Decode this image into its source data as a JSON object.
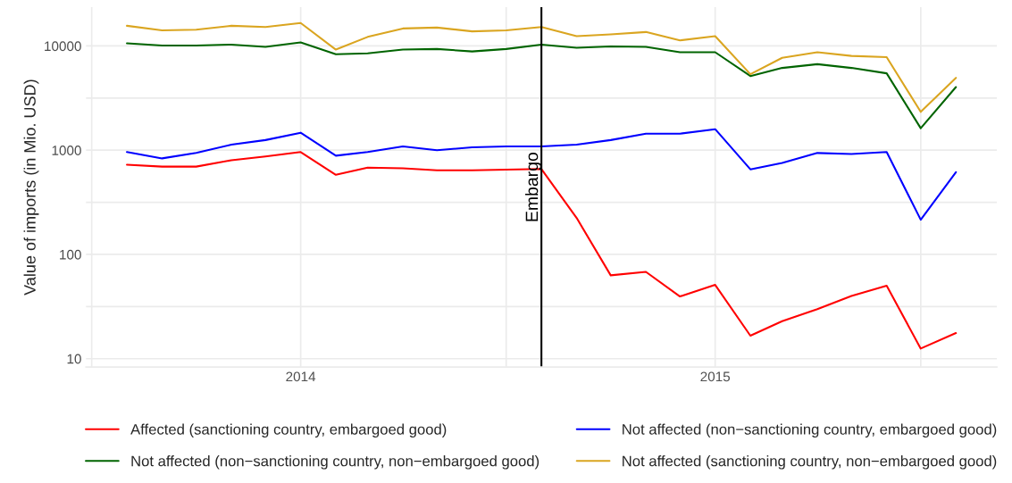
{
  "chart_data": {
    "type": "line",
    "ylabel": "Value of imports (in Mio. USD)",
    "x": [
      "2013-08",
      "2013-09",
      "2013-10",
      "2013-11",
      "2013-12",
      "2014-01",
      "2014-02",
      "2014-03",
      "2014-04",
      "2014-05",
      "2014-06",
      "2014-07",
      "2014-08",
      "2014-09",
      "2014-10",
      "2014-11",
      "2014-12",
      "2015-01",
      "2015-02",
      "2015-03",
      "2015-04",
      "2015-05",
      "2015-06",
      "2015-07",
      "2015-08"
    ],
    "series": [
      {
        "name": "Affected (sanctioning country, embargoed good)",
        "color": "#ff0000",
        "values": [
          724,
          695,
          695,
          800,
          869,
          960,
          580,
          680,
          670,
          640,
          640,
          650,
          660,
          224,
          63,
          68,
          39.5,
          51,
          16.6,
          22.9,
          29.8,
          40,
          50,
          12.5,
          17.6
        ]
      },
      {
        "name": "Not affected (non−sanctioning country, embargoed good)",
        "color": "#0000ff",
        "values": [
          960,
          834,
          940,
          1130,
          1250,
          1470,
          885,
          960,
          1085,
          1000,
          1065,
          1085,
          1085,
          1130,
          1250,
          1440,
          1440,
          1590,
          655,
          754,
          940,
          920,
          960,
          215,
          615
        ]
      },
      {
        "name": "Not affected (non−sanctioning country, non−embargoed good)",
        "color": "#006400",
        "values": [
          10600,
          10100,
          10100,
          10300,
          9800,
          10800,
          8330,
          8500,
          9220,
          9350,
          8850,
          9350,
          10300,
          9600,
          9900,
          9800,
          8700,
          8700,
          5140,
          6150,
          6680,
          6150,
          5460,
          1625,
          4030
        ]
      },
      {
        "name": "Not affected (sanctioning country, non−embargoed good)",
        "color": "#daa520",
        "values": [
          15600,
          14100,
          14300,
          15600,
          15200,
          16600,
          9220,
          12200,
          14700,
          15000,
          13800,
          14100,
          15200,
          12400,
          12900,
          13600,
          11300,
          12400,
          5350,
          7690,
          8700,
          8020,
          7800,
          2330,
          4940
        ]
      }
    ],
    "log": "y",
    "ylim": [
      8.3,
      23500
    ],
    "yticks": [
      10,
      {
        "value": 31.6,
        "label": null
      },
      100,
      {
        "value": 316,
        "label": null
      },
      1000,
      {
        "value": 3160,
        "label": null
      },
      10000
    ],
    "xlim": [
      "2013-06-26",
      "2015-09-06"
    ],
    "xticks": [
      {
        "value": "2013-07-01",
        "label": null
      },
      {
        "value": "2014-01-01",
        "label": "2014"
      },
      {
        "value": "2014-07-01",
        "label": null
      },
      {
        "value": "2015-01-01",
        "label": "2015"
      },
      {
        "value": "2015-07-01",
        "label": null
      }
    ],
    "ref_lines": [
      {
        "axis": "x",
        "value": "2014-08",
        "label": "Embargo",
        "color": "#000000"
      }
    ],
    "grid": true,
    "legend": "bottom",
    "marker": "none",
    "line_style": "solid"
  }
}
